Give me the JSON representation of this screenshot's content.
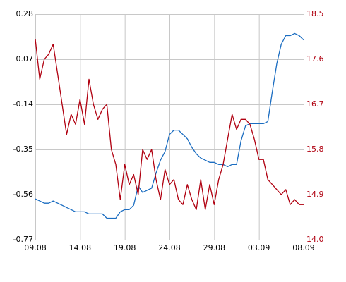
{
  "chart_data": {
    "type": "line",
    "categories": [
      "09.08",
      null,
      null,
      null,
      null,
      null,
      null,
      null,
      null,
      null,
      "14.08",
      null,
      null,
      null,
      null,
      null,
      null,
      null,
      null,
      null,
      "19.08",
      null,
      null,
      null,
      null,
      null,
      null,
      null,
      null,
      null,
      "24.08",
      null,
      null,
      null,
      null,
      null,
      null,
      null,
      null,
      null,
      "29.08",
      null,
      null,
      null,
      null,
      null,
      null,
      null,
      null,
      null,
      "03.09",
      null,
      null,
      null,
      null,
      null,
      null,
      null,
      null,
      null,
      "08.09"
    ],
    "series": [
      {
        "color": "#1b6dc1",
        "axis": "y",
        "values": [
          -0.58,
          -0.59,
          -0.6,
          -0.6,
          -0.59,
          -0.6,
          -0.61,
          -0.62,
          -0.63,
          -0.64,
          -0.64,
          -0.64,
          -0.65,
          -0.65,
          -0.65,
          -0.65,
          -0.67,
          -0.67,
          -0.67,
          -0.64,
          -0.63,
          -0.63,
          -0.61,
          -0.52,
          -0.55,
          -0.54,
          -0.53,
          -0.46,
          -0.4,
          -0.36,
          -0.28,
          -0.26,
          -0.26,
          -0.28,
          -0.3,
          -0.34,
          -0.37,
          -0.39,
          -0.4,
          -0.41,
          -0.41,
          -0.42,
          -0.42,
          -0.43,
          -0.42,
          -0.42,
          -0.31,
          -0.24,
          -0.23,
          -0.23,
          -0.23,
          -0.23,
          -0.22,
          -0.08,
          0.05,
          0.14,
          0.18,
          0.18,
          0.19,
          0.18,
          0.16
        ]
      },
      {
        "color": "#b00010",
        "axis": "y2",
        "values": [
          18.0,
          17.2,
          17.6,
          17.7,
          17.9,
          17.3,
          16.7,
          16.1,
          16.5,
          16.3,
          16.8,
          16.3,
          17.2,
          16.7,
          16.4,
          16.6,
          16.7,
          15.8,
          15.5,
          14.8,
          15.5,
          15.1,
          15.3,
          14.9,
          15.8,
          15.6,
          15.8,
          15.2,
          14.8,
          15.4,
          15.1,
          15.2,
          14.8,
          14.7,
          15.1,
          14.8,
          14.6,
          15.2,
          14.6,
          15.1,
          14.7,
          15.2,
          15.5,
          16.0,
          16.5,
          16.2,
          16.4,
          16.4,
          16.3,
          16.0,
          15.6,
          15.6,
          15.2,
          15.1,
          15.0,
          14.9,
          15.0,
          14.7,
          14.8,
          14.7,
          14.7
        ]
      }
    ],
    "ylim": [
      -0.77,
      0.28
    ],
    "yticks": [
      0.28,
      0.07,
      -0.14,
      -0.35,
      -0.56,
      -0.77
    ],
    "y2lim": [
      14,
      18.5
    ],
    "y2ticks": [
      {
        "value": 14,
        "label": "14.0"
      },
      14.9,
      15.8,
      16.7,
      17.6,
      18.5
    ],
    "grid": true
  }
}
